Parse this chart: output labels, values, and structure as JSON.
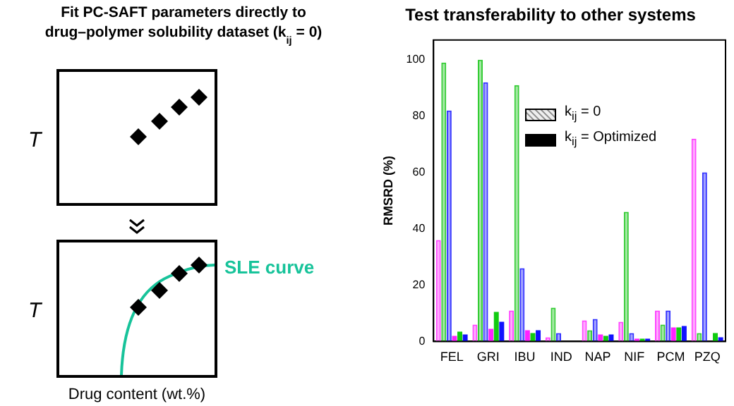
{
  "chart_data": [
    {
      "type": "other",
      "title": "Fit PC-SAFT parameters directly to drug–polymer solubility dataset (k$_{ij}$ = 0)",
      "annotations": [
        "T",
        "T",
        "SLE curve",
        "Drug content (wt.%)"
      ]
    },
    {
      "type": "bar",
      "title": "Test transferability to other systems",
      "ylabel": "RMSRD (%)",
      "categories": [
        "FEL",
        "GRI",
        "IBU",
        "IND",
        "NAP",
        "NIF",
        "PCM",
        "PZQ"
      ],
      "ylim": [
        0,
        107
      ],
      "yticks": [
        0,
        20,
        40,
        60,
        80,
        100
      ],
      "grid": false,
      "legend": false,
      "annotations": [
        "k$_{ij}$ = 0",
        "k$_{ij}$ = Optimized"
      ],
      "series": [
        {
          "color": "#ff44ff",
          "values": [
            36,
            6,
            11,
            1.5,
            7.5,
            7,
            11,
            72
          ]
        },
        {
          "color": "#33cc33",
          "values": [
            99,
            100,
            91,
            12,
            4,
            46,
            6,
            3
          ]
        },
        {
          "color": "#3333ff",
          "values": [
            82,
            92,
            26,
            3,
            8,
            3,
            11,
            60
          ]
        },
        {
          "color": "#ff22ff",
          "values": [
            2,
            4.5,
            4,
            null,
            2.5,
            1,
            5,
            null
          ]
        },
        {
          "color": "#11cc11",
          "values": [
            3.5,
            10.5,
            3,
            null,
            2,
            1,
            5,
            3
          ]
        },
        {
          "color": "#1111ff",
          "values": [
            2.5,
            7,
            4,
            null,
            2.5,
            1,
            5.5,
            1.5
          ]
        }
      ]
    }
  ]
}
